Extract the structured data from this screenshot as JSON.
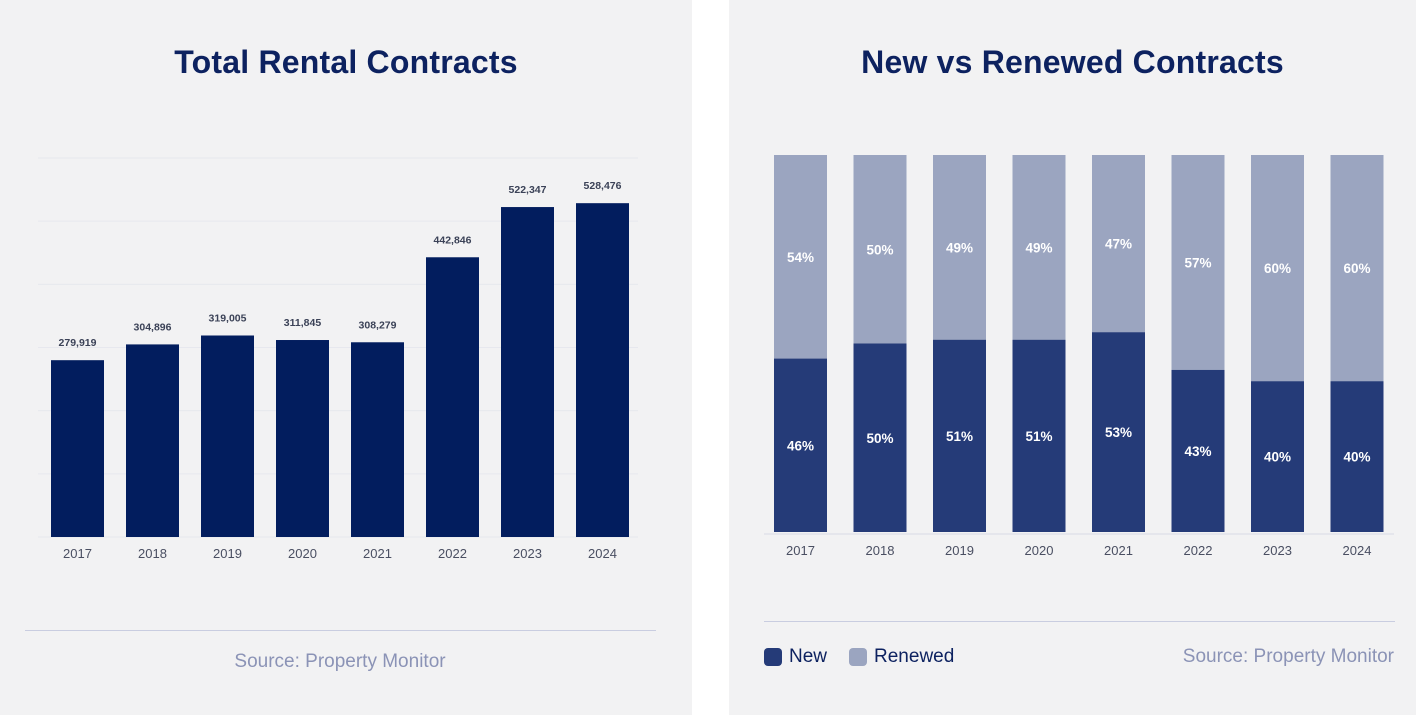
{
  "charts": [
    {
      "title": "Total Rental Contracts",
      "source": "Source: Property Monitor",
      "chart_data": {
        "type": "bar",
        "categories": [
          "2017",
          "2018",
          "2019",
          "2020",
          "2021",
          "2022",
          "2023",
          "2024"
        ],
        "values": [
          279919,
          304896,
          319005,
          311845,
          308279,
          442846,
          522347,
          528476
        ],
        "value_labels": [
          "279,919",
          "304,896",
          "319,005",
          "311,845",
          "308,279",
          "442,846",
          "522,347",
          "528,476"
        ],
        "ylim": [
          0,
          600000
        ],
        "grid": true,
        "color": "#021d5e"
      }
    },
    {
      "title": "New vs Renewed Contracts",
      "source": "Source: Property Monitor",
      "chart_data": {
        "type": "bar",
        "stacked": true,
        "categories": [
          "2017",
          "2018",
          "2019",
          "2020",
          "2021",
          "2022",
          "2023",
          "2024"
        ],
        "series": [
          {
            "name": "New",
            "values": [
              46,
              50,
              51,
              51,
              53,
              43,
              40,
              40
            ],
            "labels": [
              "46%",
              "50%",
              "51%",
              "51%",
              "53%",
              "43%",
              "40%",
              "40%"
            ],
            "color": "#253b78"
          },
          {
            "name": "Renewed",
            "values": [
              54,
              50,
              49,
              49,
              47,
              57,
              60,
              60
            ],
            "labels": [
              "54%",
              "50%",
              "49%",
              "49%",
              "47%",
              "57%",
              "60%",
              "60%"
            ],
            "color": "#9ba5c0"
          }
        ],
        "ylim": [
          0,
          100
        ],
        "legend": "bottom-left"
      }
    }
  ]
}
